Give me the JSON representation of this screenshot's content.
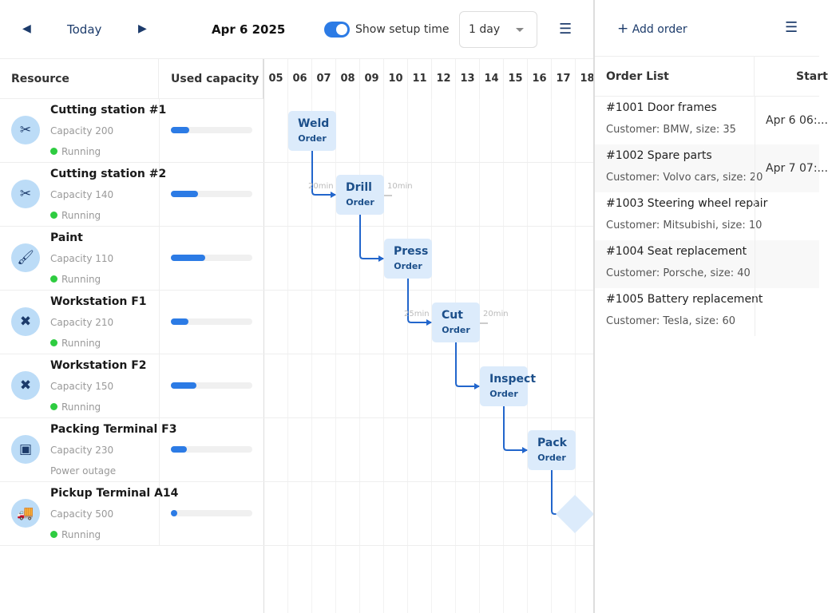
{
  "toolbar": {
    "today": "Today",
    "date": "Apr 6 2025",
    "show_setup_label": "Show setup time",
    "show_setup_on": true,
    "zoom_value": "1 day"
  },
  "grid": {
    "resource_header": "Resource",
    "capacity_header": "Used capacity",
    "hours": [
      "05",
      "06",
      "07",
      "08",
      "09",
      "10",
      "11",
      "12",
      "13",
      "14",
      "15",
      "16",
      "17",
      "18"
    ]
  },
  "resources": [
    {
      "name": "Cutting station #1",
      "capacity": "Capacity 200",
      "status": "Running",
      "running": true,
      "icon": "scissors-icon",
      "used": 0.23
    },
    {
      "name": "Cutting station #2",
      "capacity": "Capacity 140",
      "status": "Running",
      "running": true,
      "icon": "scissors-icon",
      "used": 0.33
    },
    {
      "name": "Paint",
      "capacity": "Capacity 110",
      "status": "Running",
      "running": true,
      "icon": "paint-roller-icon",
      "used": 0.42
    },
    {
      "name": "Workstation F1",
      "capacity": "Capacity 210",
      "status": "Running",
      "running": true,
      "icon": "tools-icon",
      "used": 0.22
    },
    {
      "name": "Workstation F2",
      "capacity": "Capacity 150",
      "status": "Running",
      "running": true,
      "icon": "tools-icon",
      "used": 0.31
    },
    {
      "name": "Packing Terminal F3",
      "capacity": "Capacity 230",
      "status": "Power outage",
      "running": false,
      "icon": "box-icon",
      "used": 0.2
    },
    {
      "name": "Pickup Terminal A14",
      "capacity": "Capacity 500",
      "status": "Running",
      "running": true,
      "icon": "truck-icon",
      "used": 0.08
    }
  ],
  "events": [
    {
      "name": "Weld",
      "sub": "Order"
    },
    {
      "name": "Drill",
      "sub": "Order",
      "setup_before": "20min",
      "setup_after": "10min"
    },
    {
      "name": "Press",
      "sub": "Order"
    },
    {
      "name": "Cut",
      "sub": "Order",
      "setup_before": "25min",
      "setup_after": "20min"
    },
    {
      "name": "Inspect",
      "sub": "Order"
    },
    {
      "name": "Pack",
      "sub": "Order"
    }
  ],
  "orders_panel": {
    "add_label": "Add order",
    "col_list": "Order List",
    "col_start": "Start",
    "orders": [
      {
        "title": "#1001 Door frames",
        "customer": "Customer: BMW, size: 35",
        "start": "Apr 6 06:..."
      },
      {
        "title": "#1002 Spare parts",
        "customer": "Customer: Volvo cars, size: 20",
        "start": "Apr 7 07:..."
      },
      {
        "title": "#1003 Steering wheel repair",
        "customer": "Customer: Mitsubishi, size: 10",
        "start": ""
      },
      {
        "title": "#1004 Seat replacement",
        "customer": "Customer: Porsche, size: 40",
        "start": ""
      },
      {
        "title": "#1005 Battery replacement",
        "customer": "Customer: Tesla, size: 60",
        "start": ""
      }
    ]
  },
  "colors": {
    "accent": "#2c7be5",
    "event_bg": "#dcebfb",
    "running": "#2ecc40"
  }
}
